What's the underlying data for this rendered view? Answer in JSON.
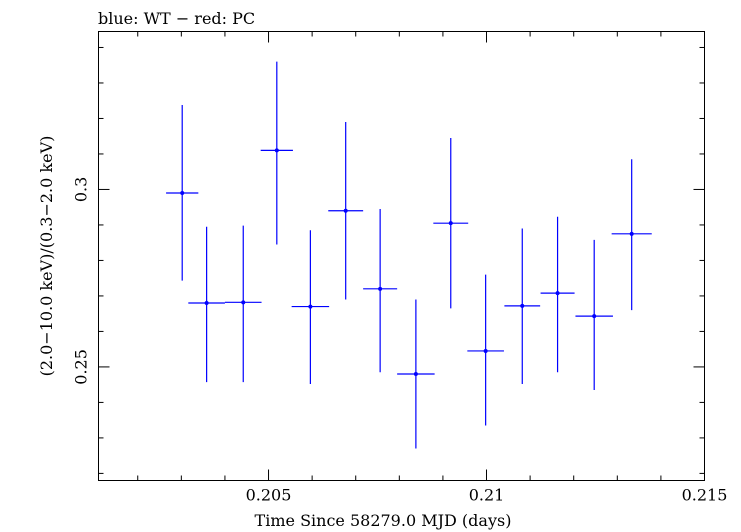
{
  "chart_data": {
    "type": "scatter",
    "title": "blue: WT − red: PC",
    "xlabel": "Time Since 58279.0 MJD (days)",
    "ylabel": "(2.0−10.0 keV)/(0.3−2.0 keV)",
    "xlim": [
      0.2011,
      0.215
    ],
    "ylim": [
      0.218,
      0.3445
    ],
    "x_ticks": [
      0.205,
      0.21,
      0.215
    ],
    "x_tick_labels": [
      "0.205",
      "0.21",
      "0.215"
    ],
    "y_ticks": [
      0.25,
      0.3
    ],
    "y_tick_labels": [
      "0.25",
      "0.3"
    ],
    "series": [
      {
        "name": "WT",
        "color": "#0000ff",
        "points": [
          {
            "x": 0.20302,
            "xerr": 0.00037,
            "y": 0.299,
            "ylo": 0.2743,
            "yhi": 0.3238
          },
          {
            "x": 0.20358,
            "xerr": 0.00042,
            "y": 0.268,
            "ylo": 0.2457,
            "yhi": 0.2895
          },
          {
            "x": 0.20442,
            "xerr": 0.00042,
            "y": 0.2682,
            "ylo": 0.2457,
            "yhi": 0.2898
          },
          {
            "x": 0.20519,
            "xerr": 0.00037,
            "y": 0.311,
            "ylo": 0.2845,
            "yhi": 0.336
          },
          {
            "x": 0.20596,
            "xerr": 0.00043,
            "y": 0.267,
            "ylo": 0.2452,
            "yhi": 0.2885
          },
          {
            "x": 0.20677,
            "xerr": 0.0004,
            "y": 0.294,
            "ylo": 0.269,
            "yhi": 0.319
          },
          {
            "x": 0.20756,
            "xerr": 0.00039,
            "y": 0.272,
            "ylo": 0.2485,
            "yhi": 0.2945
          },
          {
            "x": 0.20838,
            "xerr": 0.00043,
            "y": 0.248,
            "ylo": 0.227,
            "yhi": 0.269
          },
          {
            "x": 0.20918,
            "xerr": 0.0004,
            "y": 0.2905,
            "ylo": 0.2665,
            "yhi": 0.3145
          },
          {
            "x": 0.20998,
            "xerr": 0.00042,
            "y": 0.2545,
            "ylo": 0.2335,
            "yhi": 0.276
          },
          {
            "x": 0.21082,
            "xerr": 0.00041,
            "y": 0.2672,
            "ylo": 0.2452,
            "yhi": 0.289
          },
          {
            "x": 0.21163,
            "xerr": 0.00039,
            "y": 0.2708,
            "ylo": 0.2485,
            "yhi": 0.2923
          },
          {
            "x": 0.21247,
            "xerr": 0.00043,
            "y": 0.2643,
            "ylo": 0.2435,
            "yhi": 0.2858
          },
          {
            "x": 0.21333,
            "xerr": 0.00046,
            "y": 0.2875,
            "ylo": 0.266,
            "yhi": 0.3085
          }
        ]
      }
    ]
  }
}
